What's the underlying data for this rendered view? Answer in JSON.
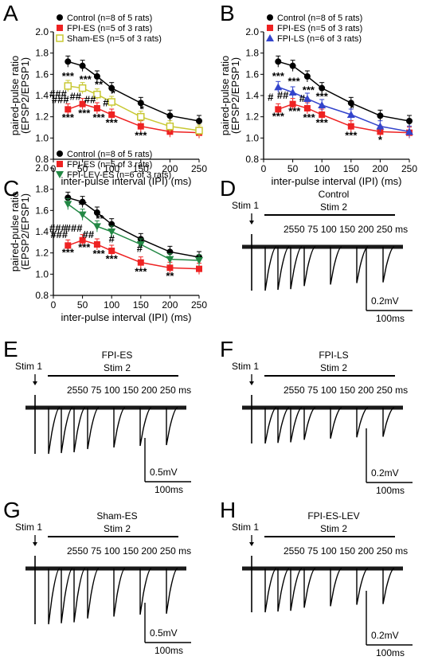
{
  "chart_data": [
    {
      "type": "line",
      "panel": "A",
      "xlabel": "inter-pulse interval (IPI) (ms)",
      "ylabel": [
        "paired-pulse ratio",
        "(EPSP2/EPSP1)"
      ],
      "xlim": [
        0,
        250
      ],
      "ylim": [
        0.8,
        2.0
      ],
      "xticks": [
        "0",
        "50",
        "100",
        "150",
        "200",
        "250"
      ],
      "yticks": [
        "0.8",
        "1.0",
        "1.2",
        "1.4",
        "1.6",
        "1.8",
        "2.0"
      ],
      "x": [
        25,
        50,
        75,
        100,
        150,
        200,
        250
      ],
      "series": [
        {
          "name": "Control (n=8 of 5 rats)",
          "color": "#000000",
          "marker": "circle",
          "values": [
            1.72,
            1.68,
            1.58,
            1.47,
            1.33,
            1.21,
            1.16
          ]
        },
        {
          "name": "FPI-ES (n=5 of 3 rats)",
          "color": "#ee2222",
          "marker": "square",
          "values": [
            1.27,
            1.32,
            1.28,
            1.22,
            1.11,
            1.06,
            1.05
          ]
        },
        {
          "name": "Sham-ES (n=5 of 3 rats)",
          "color": "#c8c832",
          "marker": "open-square",
          "values": [
            1.49,
            1.47,
            1.41,
            1.34,
            1.2,
            1.11,
            1.07
          ]
        }
      ],
      "annotations": [
        {
          "text": "***",
          "x": 25,
          "y": 1.55
        },
        {
          "text": "***",
          "x": 55,
          "y": 1.52
        },
        {
          "text": "**",
          "x": 78,
          "y": 1.47
        },
        {
          "text": "*",
          "x": 103,
          "y": 1.39
        },
        {
          "text": "*",
          "x": 152,
          "y": 1.24
        },
        {
          "text": "***",
          "x": 25,
          "y": 1.16
        },
        {
          "text": "***",
          "x": 53,
          "y": 1.2
        },
        {
          "text": "***",
          "x": 78,
          "y": 1.16
        },
        {
          "text": "***",
          "x": 100,
          "y": 1.11
        },
        {
          "text": "***",
          "x": 150,
          "y": 0.99
        },
        {
          "text": "###",
          "x": 8,
          "y": 1.38
        },
        {
          "text": "###",
          "x": 12,
          "y": 1.33
        },
        {
          "text": "##",
          "x": 38,
          "y": 1.36
        },
        {
          "text": "##",
          "x": 63,
          "y": 1.33
        },
        {
          "text": "#",
          "x": 90,
          "y": 1.3
        }
      ]
    },
    {
      "type": "line",
      "panel": "B",
      "xlabel": "inter-pulse interval (IPI) (ms)",
      "ylabel": [
        "paired-pulse ratio",
        "(EPSP2/EPSP1)"
      ],
      "xlim": [
        0,
        250
      ],
      "ylim": [
        0.8,
        2.0
      ],
      "xticks": [
        "0",
        "50",
        "100",
        "150",
        "200",
        "250"
      ],
      "yticks": [
        "0.8",
        "1.0",
        "1.2",
        "1.4",
        "1.6",
        "1.8",
        "2.0"
      ],
      "x": [
        25,
        50,
        75,
        100,
        150,
        200,
        250
      ],
      "series": [
        {
          "name": "Control (n=8 of 5 rats)",
          "color": "#000000",
          "marker": "circle",
          "values": [
            1.72,
            1.68,
            1.58,
            1.47,
            1.33,
            1.21,
            1.16
          ]
        },
        {
          "name": "FPI-ES (n=5 of 3 rats)",
          "color": "#ee2222",
          "marker": "square",
          "values": [
            1.27,
            1.32,
            1.28,
            1.22,
            1.11,
            1.06,
            1.05
          ]
        },
        {
          "name": "FPI-LS (n=6 of 3 rats)",
          "color": "#3344cc",
          "marker": "triangle",
          "values": [
            1.48,
            1.43,
            1.37,
            1.31,
            1.22,
            1.11,
            1.06
          ]
        }
      ],
      "annotations": [
        {
          "text": "***",
          "x": 25,
          "y": 1.55
        },
        {
          "text": "***",
          "x": 52,
          "y": 1.5
        },
        {
          "text": "***",
          "x": 77,
          "y": 1.42
        },
        {
          "text": "***",
          "x": 100,
          "y": 1.36
        },
        {
          "text": "*",
          "x": 152,
          "y": 1.25
        },
        {
          "text": "***",
          "x": 25,
          "y": 1.17
        },
        {
          "text": "***",
          "x": 53,
          "y": 1.22
        },
        {
          "text": "***",
          "x": 78,
          "y": 1.16
        },
        {
          "text": "***",
          "x": 100,
          "y": 1.11
        },
        {
          "text": "***",
          "x": 150,
          "y": 0.99
        },
        {
          "text": "*",
          "x": 200,
          "y": 0.95
        },
        {
          "text": "#",
          "x": 12,
          "y": 1.35
        },
        {
          "text": "##",
          "x": 33,
          "y": 1.37
        },
        {
          "text": "#",
          "x": 66,
          "y": 1.34
        }
      ]
    },
    {
      "type": "line",
      "panel": "C",
      "xlabel": "inter-pulse interval (IPI) (ms)",
      "ylabel": [
        "paired-pulse ratio",
        "(EPSP2/EPSP1)"
      ],
      "xlim": [
        0,
        250
      ],
      "ylim": [
        0.8,
        2.0
      ],
      "xticks": [
        "0",
        "50",
        "100",
        "150",
        "200",
        "250"
      ],
      "yticks": [
        "0.8",
        "1.0",
        "1.2",
        "1.4",
        "1.6",
        "1.8",
        "2.0"
      ],
      "x": [
        25,
        50,
        75,
        100,
        150,
        200,
        250
      ],
      "series": [
        {
          "name": "Control (n=8 of 5 rats)",
          "color": "#000000",
          "marker": "circle",
          "values": [
            1.72,
            1.68,
            1.58,
            1.47,
            1.33,
            1.21,
            1.16
          ]
        },
        {
          "name": "FPI-ES (n=5 of 3 rats)",
          "color": "#ee2222",
          "marker": "square",
          "values": [
            1.27,
            1.32,
            1.28,
            1.22,
            1.11,
            1.06,
            1.05
          ]
        },
        {
          "name": "FPI-LEV-ES (n=6 of 3 rats)",
          "color": "#228844",
          "marker": "down-triangle",
          "values": [
            1.66,
            1.56,
            1.45,
            1.4,
            1.28,
            1.14,
            1.13
          ]
        }
      ],
      "annotations": [
        {
          "text": "**",
          "x": 50,
          "y": 1.62
        },
        {
          "text": "**",
          "x": 80,
          "y": 1.49
        },
        {
          "text": "***",
          "x": 25,
          "y": 1.17
        },
        {
          "text": "***",
          "x": 53,
          "y": 1.22
        },
        {
          "text": "***",
          "x": 78,
          "y": 1.16
        },
        {
          "text": "***",
          "x": 100,
          "y": 1.11
        },
        {
          "text": "***",
          "x": 150,
          "y": 0.99
        },
        {
          "text": "**",
          "x": 200,
          "y": 0.95
        },
        {
          "text": "###",
          "x": 8,
          "y": 1.4
        },
        {
          "text": "###",
          "x": 10,
          "y": 1.34
        },
        {
          "text": "###",
          "x": 35,
          "y": 1.4
        },
        {
          "text": "##",
          "x": 60,
          "y": 1.34
        },
        {
          "text": "#",
          "x": 100,
          "y": 1.3
        },
        {
          "text": "#",
          "x": 148,
          "y": 1.21
        }
      ]
    }
  ],
  "panels": {
    "A": {
      "label": "A"
    },
    "B": {
      "label": "B"
    },
    "C": {
      "label": "C"
    }
  },
  "traces": [
    {
      "label": "D",
      "title": "Control",
      "stim1": "Stim 1",
      "stim2": "Stim 2",
      "intervals": "2550 75 100  150 200  250 ms",
      "vscale": "0.2mV",
      "hscale": "100ms",
      "dir": "down"
    },
    {
      "label": "E",
      "title": "FPI-ES",
      "stim1": "Stim 1",
      "stim2": "Stim 2",
      "intervals": "2550 75 100  150 200  250 ms",
      "vscale": "0.5mV",
      "hscale": "100ms",
      "dir": "down"
    },
    {
      "label": "F",
      "title": "FPI-LS",
      "stim1": "Stim 1",
      "stim2": "Stim 2",
      "intervals": "2550 75 100  150 200  250 ms",
      "vscale": "0.2mV",
      "hscale": "100ms",
      "dir": "down"
    },
    {
      "label": "G",
      "title": "Sham-ES",
      "stim1": "Stim 1",
      "stim2": "Stim 2",
      "intervals": "2550 75 100  150 200  250 ms",
      "vscale": "0.5mV",
      "hscale": "100ms",
      "dir": "down"
    },
    {
      "label": "H",
      "title": "FPI-ES-LEV",
      "stim1": "Stim 1",
      "stim2": "Stim 2",
      "intervals": "2550 75 100  150 200  250 ms",
      "vscale": "0.2mV",
      "hscale": "100ms",
      "dir": "down"
    }
  ]
}
